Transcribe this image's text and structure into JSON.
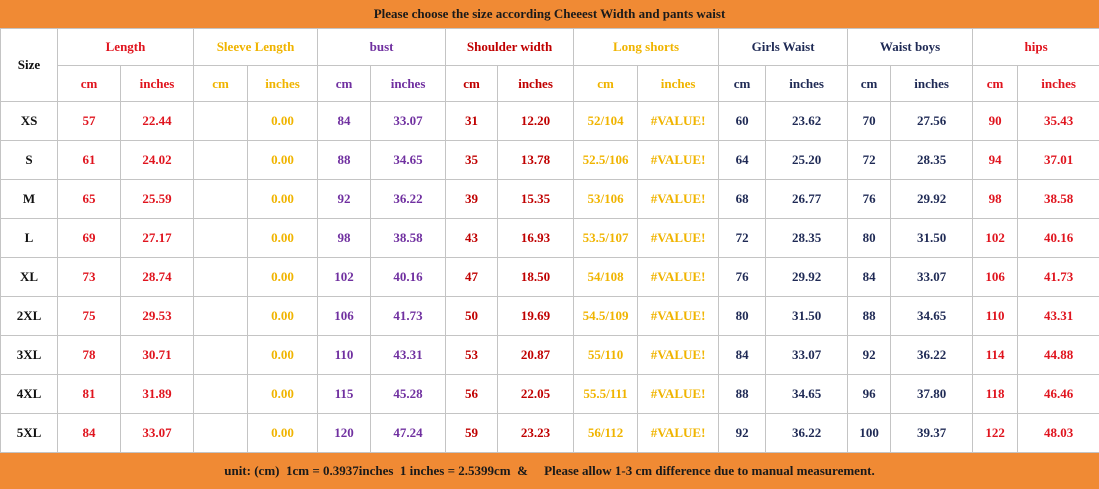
{
  "header": {
    "title": "Please choose the size according Cheeest Width and pants waist"
  },
  "table": {
    "size_label": "Size",
    "groups": [
      {
        "name": "Length",
        "color": "#e0141e",
        "units": [
          "cm",
          "inches"
        ]
      },
      {
        "name": "Sleeve Length",
        "color": "#f0b400",
        "units": [
          "cm",
          "inches"
        ]
      },
      {
        "name": "bust",
        "color": "#7030a0",
        "units": [
          "cm",
          "inches"
        ]
      },
      {
        "name": "Shoulder width",
        "color": "#c00000",
        "units": [
          "cm",
          "inches"
        ]
      },
      {
        "name": "Long shorts",
        "color": "#f0b400",
        "units": [
          "cm",
          "inches"
        ]
      },
      {
        "name": "Girls Waist",
        "color": "#1f2a55",
        "units": [
          "cm",
          "inches"
        ]
      },
      {
        "name": "Waist boys",
        "color": "#1f2a55",
        "units": [
          "cm",
          "inches"
        ]
      },
      {
        "name": "hips",
        "color": "#e0141e",
        "units": [
          "cm",
          "inches"
        ]
      }
    ],
    "rows": [
      [
        "XS",
        "57",
        "22.44",
        null,
        "0.00",
        "84",
        "33.07",
        "31",
        "12.20",
        "52/104",
        "#VALUE!",
        "60",
        "23.62",
        "70",
        "27.56",
        "90",
        "35.43"
      ],
      [
        "S",
        "61",
        "24.02",
        null,
        "0.00",
        "88",
        "34.65",
        "35",
        "13.78",
        "52.5/106",
        "#VALUE!",
        "64",
        "25.20",
        "72",
        "28.35",
        "94",
        "37.01"
      ],
      [
        "M",
        "65",
        "25.59",
        null,
        "0.00",
        "92",
        "36.22",
        "39",
        "15.35",
        "53/106",
        "#VALUE!",
        "68",
        "26.77",
        "76",
        "29.92",
        "98",
        "38.58"
      ],
      [
        "L",
        "69",
        "27.17",
        null,
        "0.00",
        "98",
        "38.58",
        "43",
        "16.93",
        "53.5/107",
        "#VALUE!",
        "72",
        "28.35",
        "80",
        "31.50",
        "102",
        "40.16"
      ],
      [
        "XL",
        "73",
        "28.74",
        null,
        "0.00",
        "102",
        "40.16",
        "47",
        "18.50",
        "54/108",
        "#VALUE!",
        "76",
        "29.92",
        "84",
        "33.07",
        "106",
        "41.73"
      ],
      [
        "2XL",
        "75",
        "29.53",
        null,
        "0.00",
        "106",
        "41.73",
        "50",
        "19.69",
        "54.5/109",
        "#VALUE!",
        "80",
        "31.50",
        "88",
        "34.65",
        "110",
        "43.31"
      ],
      [
        "3XL",
        "78",
        "30.71",
        null,
        "0.00",
        "110",
        "43.31",
        "53",
        "20.87",
        "55/110",
        "#VALUE!",
        "84",
        "33.07",
        "92",
        "36.22",
        "114",
        "44.88"
      ],
      [
        "4XL",
        "81",
        "31.89",
        null,
        "0.00",
        "115",
        "45.28",
        "56",
        "22.05",
        "55.5/111",
        "#VALUE!",
        "88",
        "34.65",
        "96",
        "37.80",
        "118",
        "46.46"
      ],
      [
        "5XL",
        "84",
        "33.07",
        null,
        "0.00",
        "120",
        "47.24",
        "59",
        "23.23",
        "56/112",
        "#VALUE!",
        "92",
        "36.22",
        "100",
        "39.37",
        "122",
        "48.03"
      ]
    ]
  },
  "footer": {
    "note": "unit: (cm)  1cm = 0.3937inches  1 inches = 2.5399cm  &     Please allow 1-3 cm difference due to manual measurement."
  }
}
